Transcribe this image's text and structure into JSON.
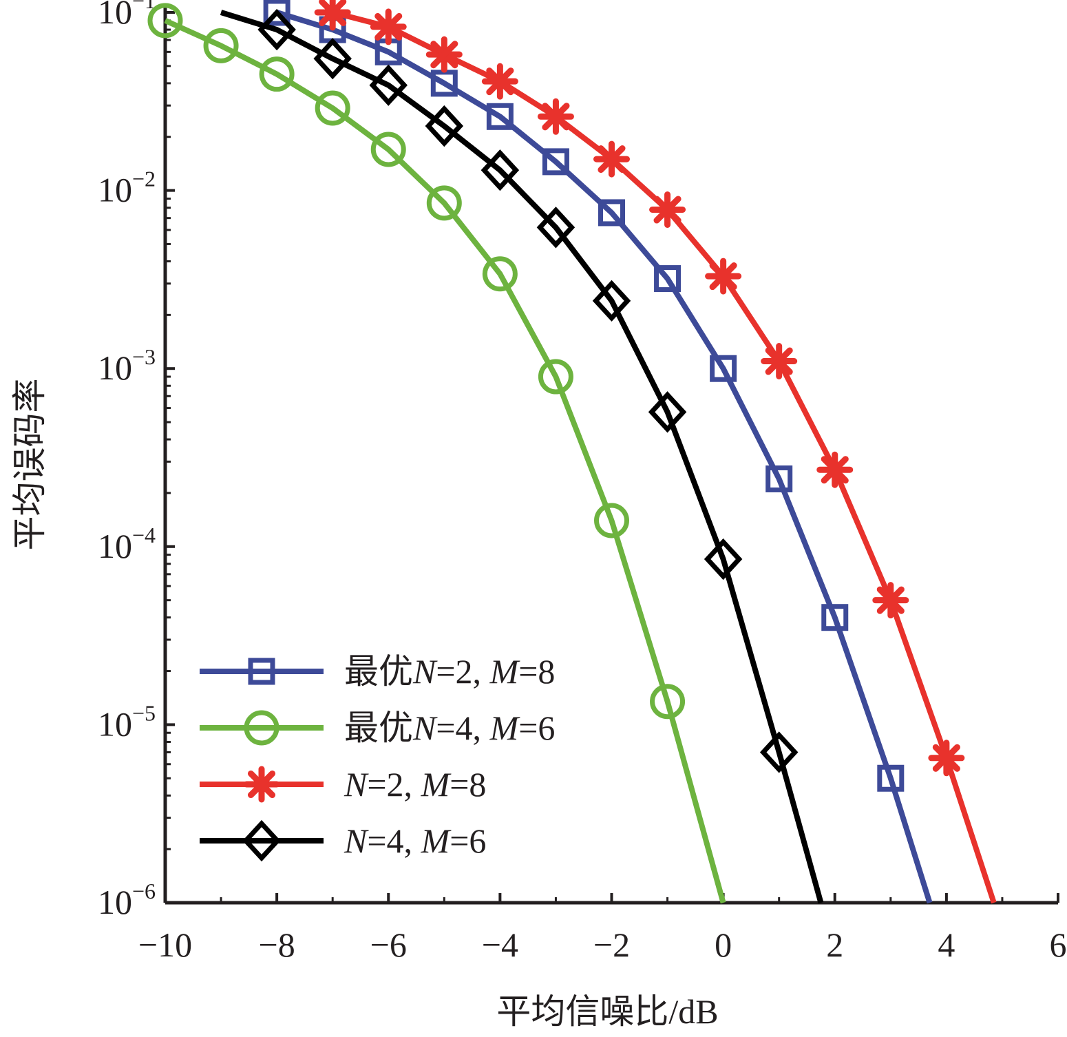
{
  "chart_data": {
    "type": "line",
    "xlabel": "平均信噪比/dB",
    "ylabel": "平均误码率",
    "xlim": [
      -10,
      6
    ],
    "ylim": [
      1e-06,
      0.1
    ],
    "y_scale": "log",
    "grid": false,
    "legend_position": "bottom-left",
    "x_ticks": [
      "−10",
      "−8",
      "−6",
      "−4",
      "−2",
      "0",
      "2",
      "4",
      "6"
    ],
    "x_tick_values": [
      -10,
      -8,
      -6,
      -4,
      -2,
      0,
      2,
      4,
      6
    ],
    "y_ticks": [
      {
        "base": "10",
        "exp": "−1"
      },
      {
        "base": "10",
        "exp": "−2"
      },
      {
        "base": "10",
        "exp": "−3"
      },
      {
        "base": "10",
        "exp": "−4"
      },
      {
        "base": "10",
        "exp": "−5"
      },
      {
        "base": "10",
        "exp": "−6"
      }
    ],
    "y_tick_values": [
      0.1,
      0.01,
      0.001,
      0.0001,
      1e-05,
      1e-06
    ],
    "series": [
      {
        "name": "最优N=2, M=8",
        "legend": {
          "prefix": "最优",
          "n_sym": "N",
          "n_val": "=2, ",
          "m_sym": "M",
          "m_val": "=8"
        },
        "color": "#3d4a98",
        "marker": "square",
        "x": [
          -8,
          -7,
          -6,
          -5,
          -4,
          -3,
          -2,
          -1,
          0,
          1,
          2,
          3,
          3.7
        ],
        "y": [
          0.1,
          0.08,
          0.06,
          0.04,
          0.026,
          0.0145,
          0.0075,
          0.0032,
          0.001,
          0.00024,
          4e-05,
          5e-06,
          1e-06
        ],
        "marker_count": 12
      },
      {
        "name": "最优N=4, M=6",
        "legend": {
          "prefix": "最优",
          "n_sym": "N",
          "n_val": "=4, ",
          "m_sym": "M",
          "m_val": "=6"
        },
        "color": "#6db33f",
        "marker": "circle",
        "x": [
          -10,
          -9,
          -8,
          -7,
          -6,
          -5,
          -4,
          -3,
          -2,
          -1,
          0
        ],
        "y": [
          0.09,
          0.065,
          0.045,
          0.029,
          0.017,
          0.0085,
          0.0034,
          0.0009,
          0.00014,
          1.35e-05,
          1e-06
        ],
        "marker_count": 10
      },
      {
        "name": "N=2, M=8",
        "legend": {
          "prefix": "",
          "n_sym": "N",
          "n_val": "=2, ",
          "m_sym": "M",
          "m_val": "=8"
        },
        "color": "#e8322c",
        "marker": "asterisk",
        "x": [
          -7,
          -6,
          -5,
          -4,
          -3,
          -2,
          -1,
          0,
          1,
          2,
          3,
          4,
          4.85
        ],
        "y": [
          0.1,
          0.083,
          0.058,
          0.041,
          0.026,
          0.015,
          0.0078,
          0.0033,
          0.0011,
          0.00027,
          5e-05,
          6.5e-06,
          1e-06
        ],
        "marker_count": 12
      },
      {
        "name": "N=4, M=6",
        "legend": {
          "prefix": "",
          "n_sym": "N",
          "n_val": "=4, ",
          "m_sym": "M",
          "m_val": "=6"
        },
        "color": "#000000",
        "marker": "diamond",
        "x": [
          -9,
          -8,
          -7,
          -6,
          -5,
          -4,
          -3,
          -2,
          -1,
          0,
          1,
          1.75
        ],
        "y": [
          0.1,
          0.08,
          0.055,
          0.039,
          0.023,
          0.013,
          0.0062,
          0.0024,
          0.00057,
          8.5e-05,
          7e-06,
          1e-06
        ],
        "marker_start": 1,
        "marker_count": 10
      }
    ]
  }
}
